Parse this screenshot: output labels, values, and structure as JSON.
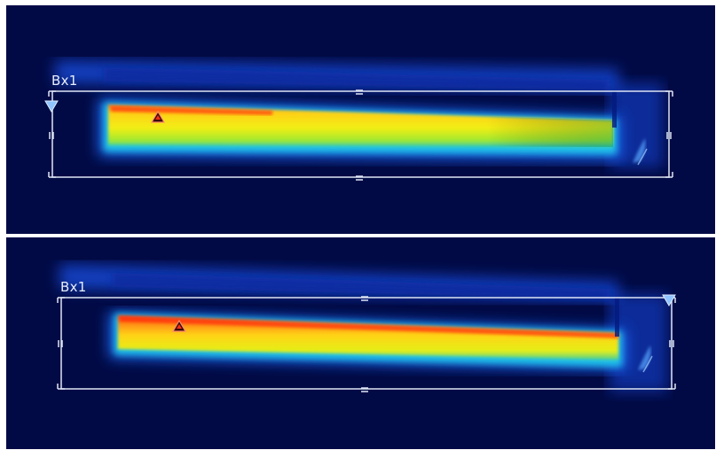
{
  "frames": [
    {
      "id": "top",
      "box_label": "Bx1",
      "cold_marker": "triangle-down-icon",
      "hot_marker": "triangle-up-icon"
    },
    {
      "id": "bottom",
      "box_label": "Bx1",
      "cold_marker": "triangle-down-icon",
      "hot_marker": "triangle-up-icon"
    }
  ],
  "colors": {
    "background": "#020a45",
    "box_outline": "#dfe6f5",
    "hot": "#ff3010",
    "warm": "#ffe014",
    "cool": "#1e6cff",
    "cold_marker": "#8fc4ff"
  }
}
